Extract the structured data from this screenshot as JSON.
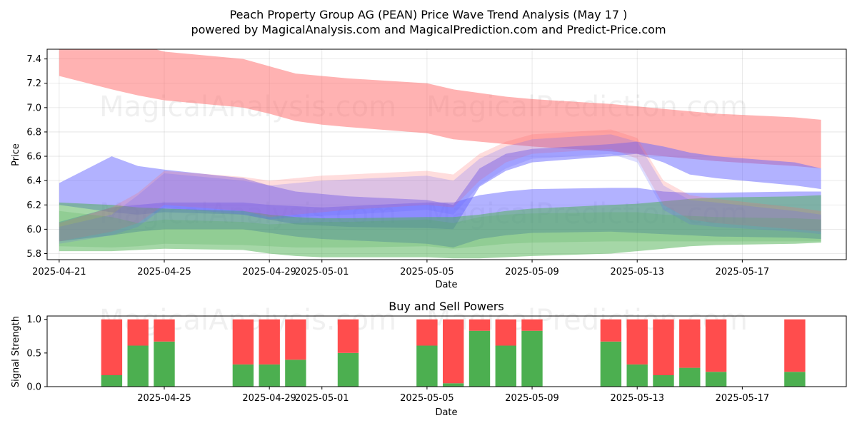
{
  "title_line1": "Peach Property Group AG (PEAN) Price Wave Trend Analysis (May 17 )",
  "title_line2": "powered by MagicalAnalysis.com and MagicalPrediction.com and Predict-Price.com",
  "watermarks": [
    "MagicalAnalysis.com",
    "MagicalPrediction.com"
  ],
  "colors": {
    "red": "#ff6666",
    "blue": "#6666ff",
    "green": "#4caf50",
    "buy": "#4caf50",
    "sell": "#ff4d4d"
  },
  "chart_data": [
    {
      "type": "area",
      "title": "",
      "xlabel": "Date",
      "ylabel": "Price",
      "x_range": [
        "2025-04-20 13:00",
        "2025-05-20 23:00"
      ],
      "ylim": [
        5.75,
        7.48
      ],
      "grid": true,
      "x_ticks": [
        "2025-04-21",
        "2025-04-25",
        "2025-04-29",
        "2025-05-01",
        "2025-05-05",
        "2025-05-09",
        "2025-05-13",
        "2025-05-17"
      ],
      "y_ticks": [
        5.8,
        6.0,
        6.2,
        6.4,
        6.6,
        6.8,
        7.0,
        7.2,
        7.4
      ],
      "dates": [
        "2025-04-21",
        "2025-04-23",
        "2025-04-24",
        "2025-04-25",
        "2025-04-28",
        "2025-04-29",
        "2025-04-30",
        "2025-05-01",
        "2025-05-02",
        "2025-05-05",
        "2025-05-06",
        "2025-05-07",
        "2025-05-08",
        "2025-05-09",
        "2025-05-12",
        "2025-05-13",
        "2025-05-14",
        "2025-05-15",
        "2025-05-16",
        "2025-05-19",
        "2025-05-20"
      ],
      "series": [
        {
          "name": "red-upper-band",
          "color": "red",
          "upper": [
            7.6,
            7.56,
            7.52,
            7.46,
            7.4,
            7.34,
            7.28,
            7.26,
            7.24,
            7.2,
            7.15,
            7.12,
            7.09,
            7.07,
            7.03,
            7.01,
            6.99,
            6.97,
            6.95,
            6.92,
            6.9
          ],
          "lower": [
            7.26,
            7.15,
            7.1,
            7.06,
            7.0,
            6.95,
            6.89,
            6.86,
            6.84,
            6.79,
            6.74,
            6.72,
            6.7,
            6.68,
            6.64,
            6.62,
            6.6,
            6.58,
            6.56,
            6.52,
            6.5
          ]
        },
        {
          "name": "blue-upper-band",
          "color": "blue",
          "upper": [
            6.38,
            6.6,
            6.52,
            6.49,
            6.42,
            6.36,
            6.31,
            6.29,
            6.27,
            6.24,
            6.2,
            6.5,
            6.62,
            6.66,
            6.7,
            6.72,
            6.68,
            6.63,
            6.6,
            6.55,
            6.5
          ],
          "lower": [
            6.2,
            6.14,
            6.12,
            6.14,
            6.12,
            6.08,
            6.04,
            6.03,
            6.02,
            6.01,
            6.0,
            6.35,
            6.48,
            6.55,
            6.6,
            6.62,
            6.55,
            6.45,
            6.42,
            6.36,
            6.33
          ]
        },
        {
          "name": "blue-lower-band",
          "color": "blue",
          "upper": [
            6.06,
            6.18,
            6.2,
            6.22,
            6.22,
            6.2,
            6.19,
            6.18,
            6.19,
            6.22,
            6.22,
            6.28,
            6.31,
            6.33,
            6.34,
            6.34,
            6.31,
            6.3,
            6.3,
            6.31,
            6.31
          ],
          "lower": [
            5.9,
            5.95,
            5.98,
            6.0,
            6.0,
            5.97,
            5.94,
            5.92,
            5.91,
            5.88,
            5.85,
            5.92,
            5.95,
            5.97,
            5.98,
            5.97,
            5.96,
            5.95,
            5.94,
            5.93,
            5.92
          ]
        },
        {
          "name": "green-lower-band",
          "color": "green",
          "upper": [
            6.22,
            6.2,
            6.18,
            6.17,
            6.15,
            6.12,
            6.1,
            6.09,
            6.09,
            6.1,
            6.1,
            6.12,
            6.15,
            6.17,
            6.2,
            6.21,
            6.23,
            6.25,
            6.26,
            6.27,
            6.28
          ],
          "lower": [
            5.82,
            5.82,
            5.83,
            5.84,
            5.83,
            5.8,
            5.78,
            5.77,
            5.77,
            5.77,
            5.76,
            5.76,
            5.77,
            5.78,
            5.8,
            5.82,
            5.84,
            5.86,
            5.87,
            5.88,
            5.89
          ]
        },
        {
          "name": "wave-band-1",
          "color": "red",
          "upper": [
            6.05,
            6.18,
            6.3,
            6.48,
            6.43,
            6.4,
            6.42,
            6.44,
            6.45,
            6.48,
            6.45,
            6.62,
            6.72,
            6.78,
            6.82,
            6.75,
            6.4,
            6.28,
            6.25,
            6.18,
            6.15
          ],
          "lower": [
            5.9,
            5.98,
            6.05,
            6.2,
            6.15,
            6.1,
            6.12,
            6.14,
            6.16,
            6.2,
            6.18,
            6.4,
            6.55,
            6.62,
            6.66,
            6.58,
            6.2,
            6.08,
            6.05,
            6.0,
            5.98
          ]
        },
        {
          "name": "wave-band-2",
          "color": "blue",
          "upper": [
            6.02,
            6.12,
            6.28,
            6.46,
            6.4,
            6.36,
            6.38,
            6.4,
            6.41,
            6.44,
            6.4,
            6.58,
            6.68,
            6.74,
            6.78,
            6.72,
            6.36,
            6.24,
            6.22,
            6.15,
            6.12
          ],
          "lower": [
            5.88,
            5.95,
            6.02,
            6.18,
            6.12,
            6.08,
            6.1,
            6.11,
            6.12,
            6.16,
            6.12,
            6.36,
            6.5,
            6.58,
            6.62,
            6.55,
            6.16,
            6.04,
            6.02,
            5.98,
            5.96
          ]
        },
        {
          "name": "wave-band-3",
          "color": "green",
          "upper": [
            6.15,
            6.1,
            6.05,
            6.08,
            6.06,
            6.04,
            6.05,
            6.06,
            6.06,
            6.08,
            6.05,
            6.1,
            6.12,
            6.13,
            6.14,
            6.14,
            6.12,
            6.11,
            6.1,
            6.09,
            6.08
          ],
          "lower": [
            5.86,
            5.85,
            5.86,
            5.88,
            5.87,
            5.86,
            5.85,
            5.85,
            5.85,
            5.86,
            5.84,
            5.86,
            5.88,
            5.89,
            5.9,
            5.9,
            5.9,
            5.9,
            5.9,
            5.9,
            5.9
          ]
        }
      ]
    },
    {
      "type": "bar",
      "title": "Buy and Sell Powers",
      "xlabel": "Date",
      "ylabel": "Signal Strength",
      "ylim": [
        0,
        1.05
      ],
      "y_ticks": [
        "0.0",
        "0.5",
        "1.0"
      ],
      "x_ticks": [
        "2025-04-25",
        "2025-04-29",
        "2025-05-01",
        "2025-05-05",
        "2025-05-09",
        "2025-05-13",
        "2025-05-17"
      ],
      "categories": [
        "2025-04-23",
        "2025-04-24",
        "2025-04-25",
        "2025-04-28",
        "2025-04-29",
        "2025-04-30",
        "2025-05-02",
        "2025-05-05",
        "2025-05-06",
        "2025-05-07",
        "2025-05-08",
        "2025-05-09",
        "2025-05-12",
        "2025-05-13",
        "2025-05-14",
        "2025-05-15",
        "2025-05-16",
        "2025-05-19"
      ],
      "series": [
        {
          "name": "Buy",
          "color": "buy",
          "values": [
            0.17,
            0.61,
            0.67,
            0.33,
            0.33,
            0.4,
            0.5,
            0.61,
            0.05,
            0.83,
            0.61,
            0.83,
            0.67,
            0.33,
            0.17,
            0.28,
            0.22,
            0.22
          ]
        },
        {
          "name": "Sell",
          "color": "sell",
          "values": [
            0.83,
            0.39,
            0.33,
            0.67,
            0.67,
            0.6,
            0.5,
            0.39,
            0.95,
            0.17,
            0.39,
            0.17,
            0.33,
            0.67,
            0.83,
            0.72,
            0.78,
            0.78
          ]
        }
      ]
    }
  ]
}
